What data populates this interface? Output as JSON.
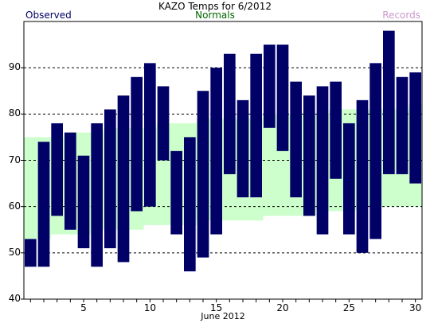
{
  "chart_data": {
    "type": "bar",
    "title": "KAZO Temps for 6/2012",
    "xlabel": "June 2012",
    "ylabel": "",
    "legend": [
      {
        "name": "Observed",
        "color": "#000066"
      },
      {
        "name": "Normals",
        "color": "#006600"
      },
      {
        "name": "Records",
        "color": "#cc99cc"
      }
    ],
    "ylim": [
      40,
      100
    ],
    "yticks": [
      40,
      50,
      60,
      70,
      80,
      90
    ],
    "xticks": [
      5,
      10,
      15,
      20,
      25,
      30
    ],
    "grid": true,
    "days": [
      1,
      2,
      3,
      4,
      5,
      6,
      7,
      8,
      9,
      10,
      11,
      12,
      13,
      14,
      15,
      16,
      17,
      18,
      19,
      20,
      21,
      22,
      23,
      24,
      25,
      26,
      27,
      28,
      29,
      30
    ],
    "observed_high": [
      53,
      74,
      78,
      76,
      71,
      78,
      81,
      84,
      88,
      91,
      86,
      72,
      75,
      85,
      90,
      93,
      83,
      93,
      95,
      95,
      87,
      84,
      86,
      87,
      78,
      83,
      91,
      98,
      88,
      89
    ],
    "observed_low": [
      47,
      47,
      58,
      55,
      51,
      47,
      51,
      48,
      59,
      60,
      70,
      54,
      46,
      49,
      54,
      67,
      62,
      62,
      77,
      72,
      62,
      58,
      54,
      66,
      54,
      50,
      53,
      67,
      67,
      65
    ],
    "normal_high": [
      75,
      75,
      75,
      76,
      76,
      76,
      77,
      77,
      77,
      77,
      78,
      78,
      78,
      79,
      79,
      79,
      79,
      79,
      80,
      80,
      80,
      80,
      80,
      81,
      81,
      81,
      81,
      81,
      81,
      82
    ],
    "normal_low": [
      53,
      53,
      54,
      54,
      54,
      55,
      55,
      55,
      55,
      56,
      56,
      56,
      56,
      57,
      57,
      57,
      57,
      57,
      58,
      58,
      58,
      58,
      59,
      59,
      59,
      60,
      60,
      60,
      60,
      60
    ]
  },
  "colors": {
    "observed": "#000066",
    "normals": "#ccffcc",
    "normals_label": "#006600",
    "records_label": "#cc99cc"
  }
}
